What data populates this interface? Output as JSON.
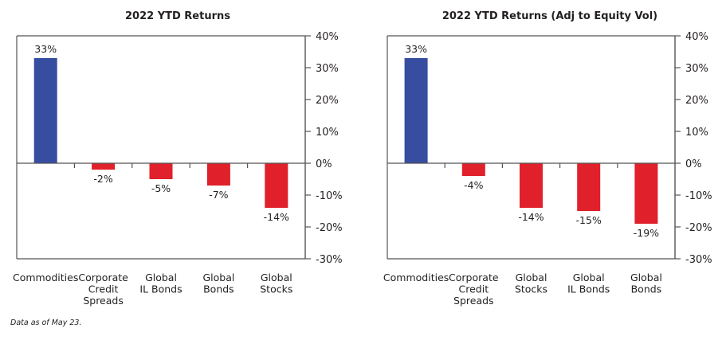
{
  "colors": {
    "positive": "#364DA0",
    "negative": "#E0202A",
    "axis": "#555555"
  },
  "footnote": "Data as of May 23.",
  "chart_data": [
    {
      "type": "bar",
      "title": "2022 YTD Returns",
      "categories": [
        [
          "Commodities"
        ],
        [
          "Corporate",
          "Credit",
          "Spreads"
        ],
        [
          "Global",
          "IL Bonds"
        ],
        [
          "Global",
          "Bonds"
        ],
        [
          "Global",
          "Stocks"
        ]
      ],
      "values": [
        33,
        -2,
        -5,
        -7,
        -14
      ],
      "data_labels": [
        "33%",
        "-2%",
        "-5%",
        "-7%",
        "-14%"
      ],
      "ylim": [
        -30,
        40
      ],
      "yticks": [
        40,
        30,
        20,
        10,
        0,
        -10,
        -20,
        -30
      ],
      "ytick_labels": [
        "40%",
        "30%",
        "20%",
        "10%",
        "0%",
        "-10%",
        "-20%",
        "-30%"
      ],
      "y_axis_side": "right",
      "xlabel": "",
      "ylabel": "",
      "grid": false,
      "legend": "none"
    },
    {
      "type": "bar",
      "title": "2022 YTD Returns (Adj to Equity Vol)",
      "categories": [
        [
          "Commodities"
        ],
        [
          "Corporate",
          "Credit",
          "Spreads"
        ],
        [
          "Global",
          "Stocks"
        ],
        [
          "Global",
          "IL Bonds"
        ],
        [
          "Global",
          "Bonds"
        ]
      ],
      "values": [
        33,
        -4,
        -14,
        -15,
        -19
      ],
      "data_labels": [
        "33%",
        "-4%",
        "-14%",
        "-15%",
        "-19%"
      ],
      "ylim": [
        -30,
        40
      ],
      "yticks": [
        40,
        30,
        20,
        10,
        0,
        -10,
        -20,
        -30
      ],
      "ytick_labels": [
        "40%",
        "30%",
        "20%",
        "10%",
        "0%",
        "-10%",
        "-20%",
        "-30%"
      ],
      "y_axis_side": "right",
      "xlabel": "",
      "ylabel": "",
      "grid": false,
      "legend": "none"
    }
  ]
}
